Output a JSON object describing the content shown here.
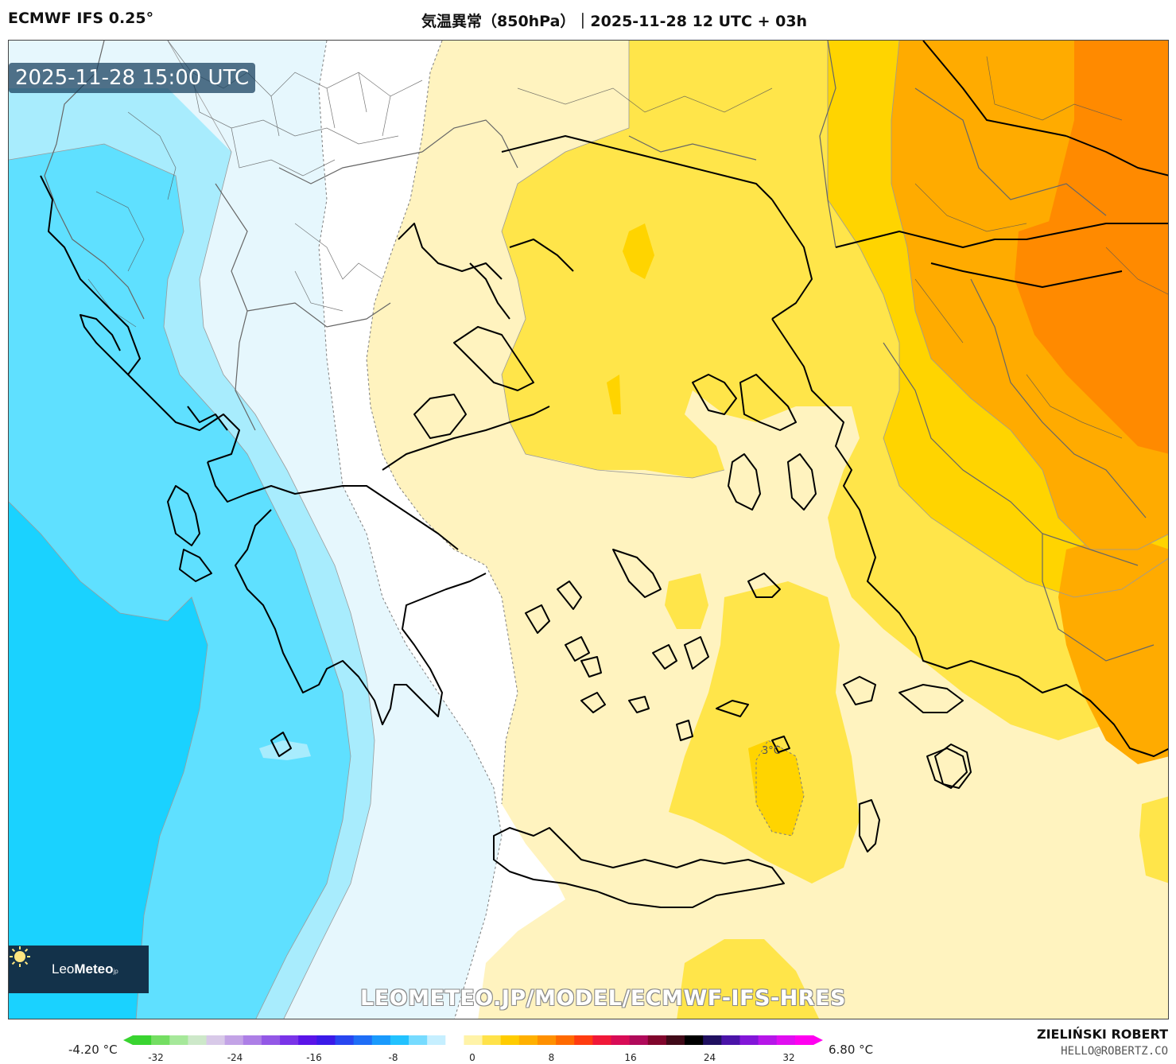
{
  "header": {
    "model": "ECMWF IFS 0.25°",
    "title": "気温異常（850hPa）｜2025-11-28 12 UTC + 03h"
  },
  "map": {
    "valid_time": "2025-11-28 15:00 UTC",
    "contour_label": "3°C",
    "watermark_url": "LEOMETEO.JP/MODEL/ECMWF-IFS-HRES",
    "logo": {
      "name_light": "Leo",
      "name_bold": "Meteo",
      "suffix": "jp"
    },
    "colors": {
      "cold_strong": "#1ad2ff",
      "cold_mid": "#5fe0ff",
      "cold_light": "#a8ecfd",
      "cold_faint": "#e6f7fd",
      "neutral": "#ffffff",
      "warm_faint": "#fff3bf",
      "warm_light": "#ffe54a",
      "warm_mid": "#ffd400",
      "warm_orange": "#ffab00",
      "warm_deep": "#ff8a00"
    }
  },
  "legend": {
    "min_label": "-4.20 °C",
    "max_label": "6.80 °C",
    "ticks": [
      "-32",
      "-24",
      "-16",
      "-8",
      "0",
      "8",
      "16",
      "24",
      "32"
    ],
    "colors": [
      "#39d430",
      "#74de62",
      "#a6e89a",
      "#cde8c9",
      "#d8c9e8",
      "#c3a3e6",
      "#ad7fe6",
      "#9358e6",
      "#7a34e8",
      "#5a14e8",
      "#3a1ae8",
      "#2846f0",
      "#1f6ef6",
      "#1a9afc",
      "#22c2ff",
      "#76dbff",
      "#c6efff",
      "#ffffff",
      "#fff3a8",
      "#ffe24a",
      "#ffcc00",
      "#ffb000",
      "#ff9000",
      "#ff6a00",
      "#ff3c10",
      "#f01838",
      "#d80c56",
      "#b00a5a",
      "#80062c",
      "#400a18",
      "#000000",
      "#201060",
      "#4a14a8",
      "#8216d8",
      "#b616e8",
      "#e00ef0",
      "#ff00f0"
    ]
  },
  "credits": {
    "author": "ZIELIŃSKI ROBERT",
    "email": "HELLO@ROBERTZ.CO"
  }
}
